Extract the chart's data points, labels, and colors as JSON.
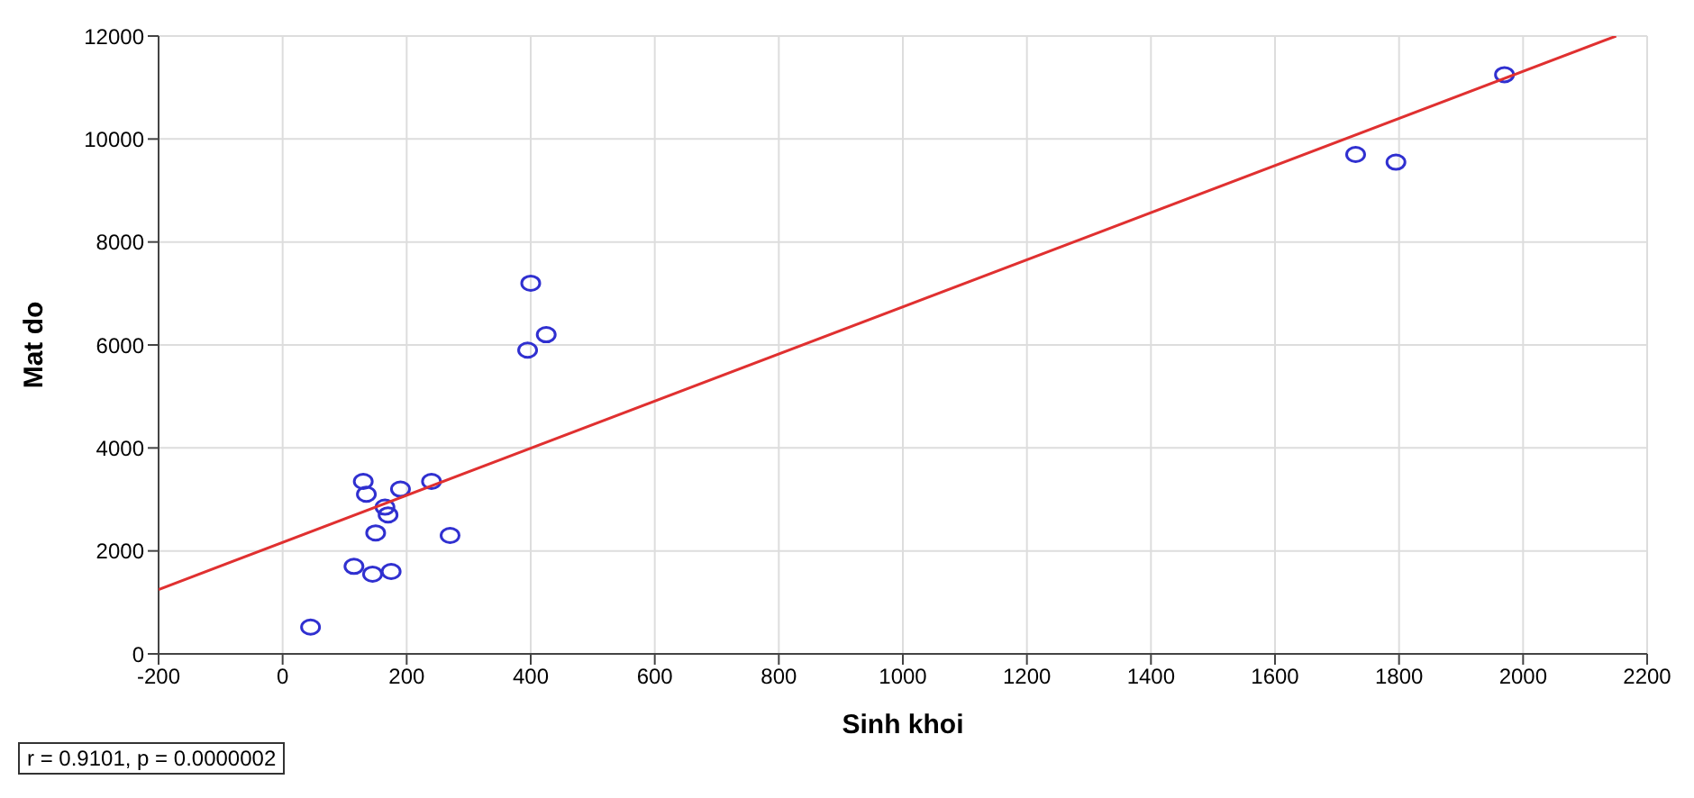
{
  "chart_data": {
    "type": "scatter",
    "xlabel": "Sinh khoi",
    "ylabel": "Mat do",
    "annotations": [
      "r = 0.9101, p = 0.0000002"
    ],
    "xlim": [
      -200,
      2200
    ],
    "xticks": [
      -200,
      0,
      200,
      400,
      600,
      800,
      1000,
      1200,
      1400,
      1600,
      1800,
      2000,
      2200
    ],
    "ylim": [
      0,
      12000
    ],
    "yticks": [
      0,
      2000,
      4000,
      6000,
      8000,
      10000,
      12000
    ],
    "grid": true,
    "marker": "circle",
    "series": [
      {
        "color": "#3030d0",
        "x": [
          45,
          115,
          130,
          135,
          145,
          150,
          165,
          170,
          175,
          190,
          240,
          270,
          395,
          400,
          425,
          1730,
          1795,
          1970
        ],
        "values": [
          520,
          1700,
          3350,
          3100,
          1550,
          2350,
          2850,
          2700,
          1600,
          3200,
          3350,
          2300,
          5900,
          7200,
          6200,
          9700,
          9550,
          11250
        ]
      },
      {
        "type": "line",
        "color": "#e03030",
        "marker": "none",
        "line_style": "solid",
        "x": [
          -200,
          2150
        ],
        "values": [
          1250,
          12000
        ]
      }
    ]
  }
}
